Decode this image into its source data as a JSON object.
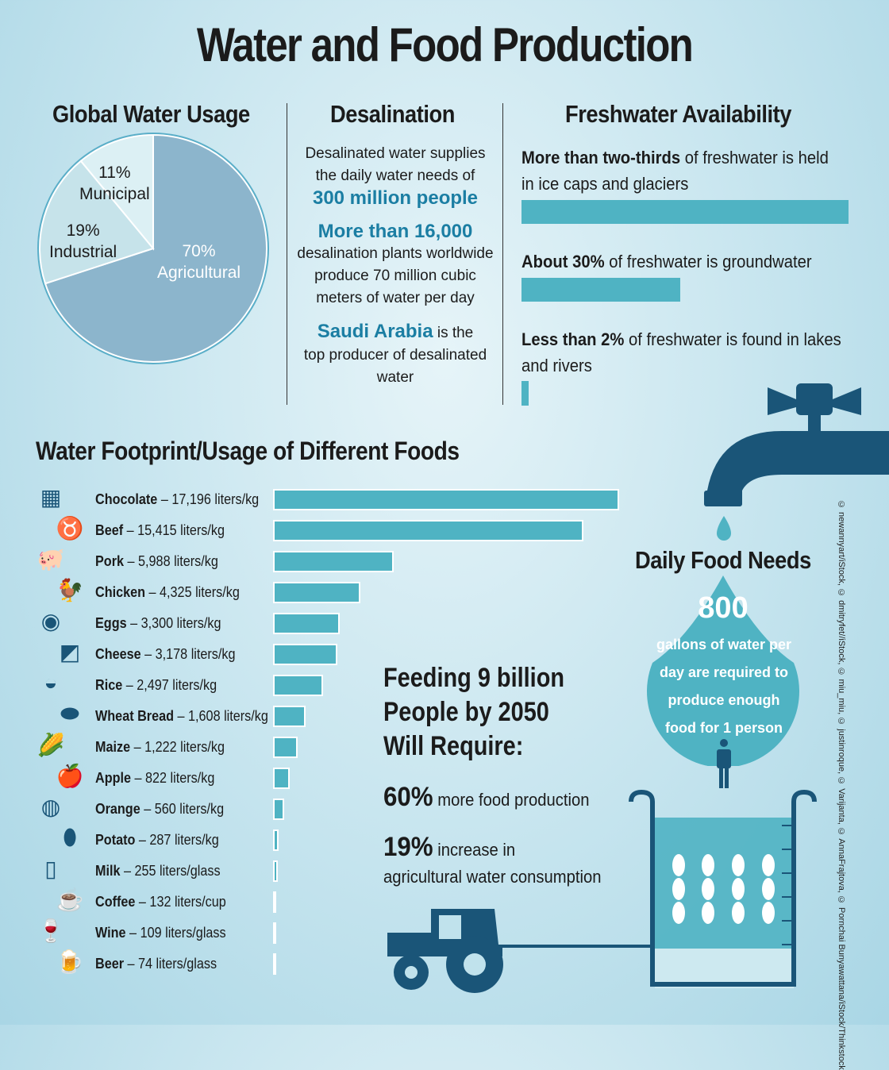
{
  "title": "Water and Food Production",
  "global_water_usage": {
    "heading": "Global Water Usage",
    "slices": [
      {
        "pct": "70%",
        "label": "Agricultural",
        "value": 70,
        "color": "#8cb5cc"
      },
      {
        "pct": "19%",
        "label": "Industrial",
        "value": 19,
        "color": "#c6e3ea"
      },
      {
        "pct": "11%",
        "label": "Municipal",
        "value": 11,
        "color": "#dcf0f4"
      }
    ]
  },
  "desalination": {
    "heading": "Desalination",
    "p1": "Desalinated water supplies the daily water needs of",
    "p1_accent": "300 million people",
    "p2_accent": "More than 16,000",
    "p2": "desalination plants worldwide produce 70 million cubic meters of water per day",
    "p3_accent": "Saudi Arabia",
    "p3a": " is the",
    "p3": "top producer of desalinated water"
  },
  "freshwater": {
    "heading": "Freshwater Availability",
    "items": [
      {
        "bold": "More than two-thirds",
        "text": " of freshwater is held in ice caps and glaciers",
        "share": 0.69
      },
      {
        "bold": "About 30%",
        "text": " of freshwater is groundwater",
        "share": 0.3
      },
      {
        "bold": "Less than 2%",
        "text": " of freshwater is found in lakes and rivers",
        "share": 0.02
      }
    ]
  },
  "chart_data": [
    {
      "type": "pie",
      "title": "Global Water Usage",
      "categories": [
        "Agricultural",
        "Industrial",
        "Municipal"
      ],
      "values": [
        70,
        19,
        11
      ],
      "unit": "%"
    },
    {
      "type": "bar",
      "title": "Water Footprint/Usage of Different Foods",
      "orientation": "horizontal",
      "categories": [
        "Chocolate",
        "Beef",
        "Pork",
        "Chicken",
        "Eggs",
        "Cheese",
        "Rice",
        "Wheat Bread",
        "Maize",
        "Apple",
        "Orange",
        "Potato",
        "Milk",
        "Coffee",
        "Wine",
        "Beer"
      ],
      "values": [
        17196,
        15415,
        5988,
        4325,
        3300,
        3178,
        2497,
        1608,
        1222,
        822,
        560,
        287,
        255,
        132,
        109,
        74
      ],
      "labels": [
        "17,196 liters/kg",
        "15,415 liters/kg",
        "5,988 liters/kg",
        "4,325 liters/kg",
        "3,300 liters/kg",
        "3,178 liters/kg",
        "2,497 liters/kg",
        "1,608 liters/kg",
        "1,222 liters/kg",
        "822 liters/kg",
        "560 liters/kg",
        "287 liters/kg",
        "255 liters/glass",
        "132 liters/cup",
        "109 liters/glass",
        "74 liters/glass"
      ],
      "icons": [
        "chocolate-icon",
        "cow-icon",
        "pig-icon",
        "chicken-icon",
        "egg-icon",
        "cheese-icon",
        "rice-bowl-icon",
        "bread-icon",
        "corn-icon",
        "apple-icon",
        "orange-icon",
        "potato-icon",
        "milk-bottle-icon",
        "coffee-cup-icon",
        "wine-glass-icon",
        "beer-mug-icon"
      ],
      "color": "#4fb3c3"
    }
  ],
  "feeding": {
    "heading": "Feeding 9 billion People by 2050 Will Require:",
    "i1_big": "60%",
    "i1": " more food production",
    "i2_big": "19%",
    "i2": " increase in",
    "i2b": "agricultural water consumption"
  },
  "daily": {
    "heading": "Daily Food Needs",
    "number": "800",
    "text": "gallons of water per day are required to produce enough food for 1 person"
  },
  "credit": "© newannyart/iStock, © dmitryfet//iStock, © miu_miu, © justinroque, © Varijanta, © AnnaFrajtova, © Pornchai Bunyawattana/iStock/Thinkstock",
  "colors": {
    "icon": "#1a5578",
    "accent": "#1b7ea3",
    "bar": "#4fb3c3"
  }
}
